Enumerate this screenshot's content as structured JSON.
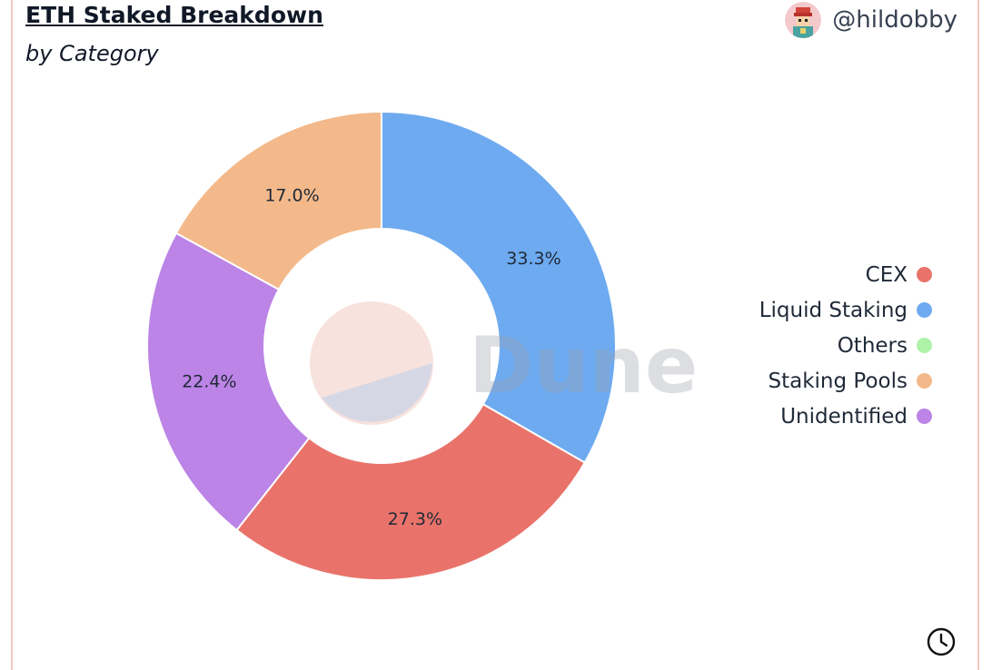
{
  "header": {
    "title": "ETH Staked Breakdown",
    "subtitle": "by Category",
    "author": "@hildobby"
  },
  "watermark": "Dune",
  "colors": {
    "CEX": "#e9736a",
    "Liquid Staking": "#6eaaf0",
    "Others": "#aef2a8",
    "Staking Pools": "#f3b98a",
    "Unidentified": "#bb84e6"
  },
  "chart_data": {
    "type": "pie",
    "hole": 0.5,
    "categories": [
      "CEX",
      "Liquid Staking",
      "Others",
      "Staking Pools",
      "Unidentified"
    ],
    "values": [
      27.3,
      33.3,
      0.0,
      17.0,
      22.4
    ],
    "labels": [
      "27.3%",
      "33.3%",
      "",
      "17.0%",
      "22.4%"
    ],
    "legend": "right",
    "title": "ETH Staked Breakdown",
    "subtitle": "by Category"
  },
  "icons": {
    "footer": "clock-icon",
    "author": "avatar"
  }
}
